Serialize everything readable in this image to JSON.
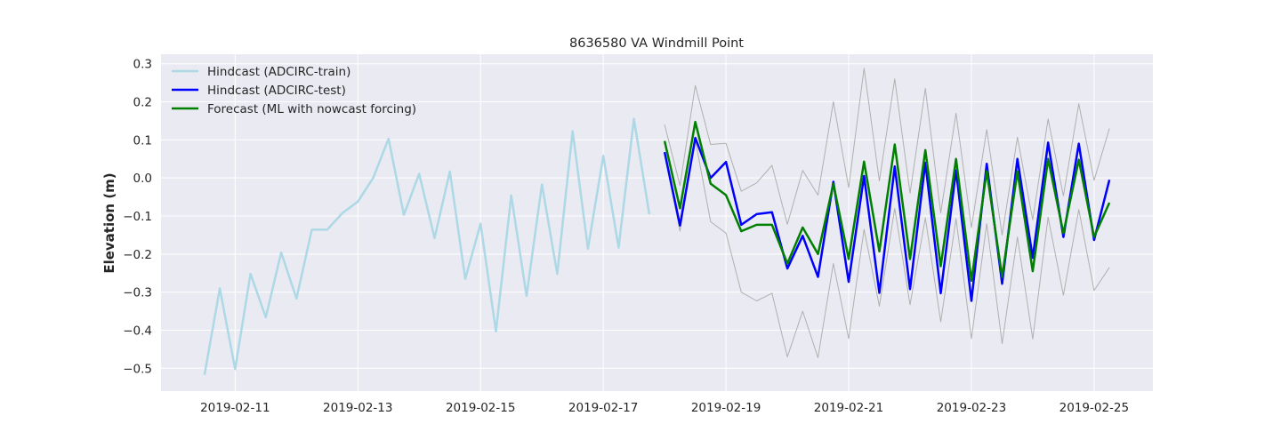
{
  "chart_data": {
    "type": "line",
    "title": "8636580 VA Windmill Point",
    "xlabel": "",
    "ylabel": "Elevation (m)",
    "x_type": "date",
    "xlim": [
      "2019-02-09T19:00",
      "2019-02-25T23:00"
    ],
    "ylim": [
      -0.56,
      0.325
    ],
    "grid": true,
    "legend_position": "top-left",
    "x_ticks": [
      "2019-02-11",
      "2019-02-13",
      "2019-02-15",
      "2019-02-17",
      "2019-02-19",
      "2019-02-21",
      "2019-02-23",
      "2019-02-25"
    ],
    "y_ticks": [
      -0.5,
      -0.4,
      -0.3,
      -0.2,
      -0.1,
      0.0,
      0.1,
      0.2,
      0.3
    ],
    "y_tick_labels": [
      "−0.5",
      "−0.4",
      "−0.3",
      "−0.2",
      "−0.1",
      "0.0",
      "0.1",
      "0.2",
      "0.3"
    ],
    "series": [
      {
        "name": "Hindcast (ADCIRC-train)",
        "color": "#add8e6",
        "width": 2.5,
        "legend": true,
        "x": [
          "2019-02-10T12:00",
          "2019-02-10T18:00",
          "2019-02-11T00:00",
          "2019-02-11T06:00",
          "2019-02-11T12:00",
          "2019-02-11T18:00",
          "2019-02-12T00:00",
          "2019-02-12T06:00",
          "2019-02-12T12:00",
          "2019-02-12T18:00",
          "2019-02-13T00:00",
          "2019-02-13T06:00",
          "2019-02-13T12:00",
          "2019-02-13T18:00",
          "2019-02-14T00:00",
          "2019-02-14T06:00",
          "2019-02-14T12:00",
          "2019-02-14T18:00",
          "2019-02-15T00:00",
          "2019-02-15T06:00",
          "2019-02-15T12:00",
          "2019-02-15T18:00",
          "2019-02-16T00:00",
          "2019-02-16T06:00",
          "2019-02-16T12:00",
          "2019-02-16T18:00",
          "2019-02-17T00:00",
          "2019-02-17T06:00",
          "2019-02-17T12:00",
          "2019-02-17T18:00"
        ],
        "values": [
          -0.517,
          -0.29,
          -0.502,
          -0.252,
          -0.366,
          -0.196,
          -0.317,
          -0.136,
          -0.136,
          -0.092,
          -0.062,
          0.0,
          0.103,
          -0.097,
          0.011,
          -0.158,
          0.017,
          -0.265,
          -0.12,
          -0.403,
          -0.046,
          -0.31,
          -0.017,
          -0.252,
          0.123,
          -0.186,
          0.058,
          -0.183,
          0.155,
          -0.095
        ]
      },
      {
        "name": "",
        "color": "#b0b0b0",
        "width": 1,
        "legend": false,
        "x": [
          "2019-02-18T00:00",
          "2019-02-18T06:00",
          "2019-02-18T12:00",
          "2019-02-18T18:00",
          "2019-02-19T00:00",
          "2019-02-19T06:00",
          "2019-02-19T12:00",
          "2019-02-19T18:00",
          "2019-02-20T00:00",
          "2019-02-20T06:00",
          "2019-02-20T12:00",
          "2019-02-20T18:00",
          "2019-02-21T00:00",
          "2019-02-21T06:00",
          "2019-02-21T12:00",
          "2019-02-21T18:00",
          "2019-02-22T00:00",
          "2019-02-22T06:00",
          "2019-02-22T12:00",
          "2019-02-22T18:00",
          "2019-02-23T00:00",
          "2019-02-23T06:00",
          "2019-02-23T12:00",
          "2019-02-23T18:00",
          "2019-02-24T00:00",
          "2019-02-24T06:00",
          "2019-02-24T12:00",
          "2019-02-24T18:00",
          "2019-02-25T00:00",
          "2019-02-25T06:00"
        ],
        "values": [
          0.14,
          -0.02,
          0.243,
          0.088,
          0.091,
          -0.035,
          -0.013,
          0.033,
          -0.122,
          0.02,
          -0.045,
          0.2,
          -0.025,
          0.288,
          -0.008,
          0.26,
          -0.04,
          0.235,
          -0.092,
          0.17,
          -0.13,
          0.127,
          -0.15,
          0.107,
          -0.11,
          0.155,
          -0.047,
          0.195,
          -0.006,
          0.13
        ]
      },
      {
        "name": "",
        "color": "#b0b0b0",
        "width": 1,
        "legend": false,
        "x": [
          "2019-02-18T00:00",
          "2019-02-18T06:00",
          "2019-02-18T12:00",
          "2019-02-18T18:00",
          "2019-02-19T00:00",
          "2019-02-19T06:00",
          "2019-02-19T12:00",
          "2019-02-19T18:00",
          "2019-02-20T00:00",
          "2019-02-20T06:00",
          "2019-02-20T12:00",
          "2019-02-20T18:00",
          "2019-02-21T00:00",
          "2019-02-21T06:00",
          "2019-02-21T12:00",
          "2019-02-21T18:00",
          "2019-02-22T00:00",
          "2019-02-22T06:00",
          "2019-02-22T12:00",
          "2019-02-22T18:00",
          "2019-02-23T00:00",
          "2019-02-23T06:00",
          "2019-02-23T12:00",
          "2019-02-23T18:00",
          "2019-02-24T00:00",
          "2019-02-24T06:00",
          "2019-02-24T12:00",
          "2019-02-24T18:00",
          "2019-02-25T00:00",
          "2019-02-25T06:00"
        ],
        "values": [
          0.06,
          -0.14,
          0.1,
          -0.115,
          -0.145,
          -0.3,
          -0.323,
          -0.303,
          -0.47,
          -0.35,
          -0.472,
          -0.225,
          -0.422,
          -0.135,
          -0.337,
          -0.08,
          -0.333,
          -0.105,
          -0.378,
          -0.107,
          -0.422,
          -0.12,
          -0.435,
          -0.155,
          -0.423,
          -0.103,
          -0.308,
          -0.083,
          -0.296,
          -0.235
        ]
      },
      {
        "name": "Hindcast (ADCIRC-test)",
        "color": "#0000ff",
        "width": 2.5,
        "legend": true,
        "x": [
          "2019-02-18T00:00",
          "2019-02-18T06:00",
          "2019-02-18T12:00",
          "2019-02-18T18:00",
          "2019-02-19T00:00",
          "2019-02-19T06:00",
          "2019-02-19T12:00",
          "2019-02-19T18:00",
          "2019-02-20T00:00",
          "2019-02-20T06:00",
          "2019-02-20T12:00",
          "2019-02-20T18:00",
          "2019-02-21T00:00",
          "2019-02-21T06:00",
          "2019-02-21T12:00",
          "2019-02-21T18:00",
          "2019-02-22T00:00",
          "2019-02-22T06:00",
          "2019-02-22T12:00",
          "2019-02-22T18:00",
          "2019-02-23T00:00",
          "2019-02-23T06:00",
          "2019-02-23T12:00",
          "2019-02-23T18:00",
          "2019-02-24T00:00",
          "2019-02-24T06:00",
          "2019-02-24T12:00",
          "2019-02-24T18:00",
          "2019-02-25T00:00",
          "2019-02-25T06:00"
        ],
        "values": [
          0.068,
          -0.125,
          0.105,
          0.0,
          0.042,
          -0.123,
          -0.095,
          -0.09,
          -0.238,
          -0.152,
          -0.26,
          -0.01,
          -0.273,
          0.005,
          -0.302,
          0.03,
          -0.292,
          0.04,
          -0.303,
          0.02,
          -0.323,
          0.037,
          -0.278,
          0.05,
          -0.21,
          0.093,
          -0.155,
          0.09,
          -0.163,
          -0.005
        ]
      },
      {
        "name": "Forecast (ML with nowcast forcing)",
        "color": "#008000",
        "width": 2.5,
        "legend": true,
        "x": [
          "2019-02-18T00:00",
          "2019-02-18T06:00",
          "2019-02-18T12:00",
          "2019-02-18T18:00",
          "2019-02-19T00:00",
          "2019-02-19T06:00",
          "2019-02-19T12:00",
          "2019-02-19T18:00",
          "2019-02-20T00:00",
          "2019-02-20T06:00",
          "2019-02-20T12:00",
          "2019-02-20T18:00",
          "2019-02-21T00:00",
          "2019-02-21T06:00",
          "2019-02-21T12:00",
          "2019-02-21T18:00",
          "2019-02-22T00:00",
          "2019-02-22T06:00",
          "2019-02-22T12:00",
          "2019-02-22T18:00",
          "2019-02-23T00:00",
          "2019-02-23T06:00",
          "2019-02-23T12:00",
          "2019-02-23T18:00",
          "2019-02-24T00:00",
          "2019-02-24T06:00",
          "2019-02-24T12:00",
          "2019-02-24T18:00",
          "2019-02-25T00:00",
          "2019-02-25T06:00"
        ],
        "values": [
          0.097,
          -0.08,
          0.147,
          -0.015,
          -0.045,
          -0.14,
          -0.123,
          -0.123,
          -0.225,
          -0.13,
          -0.2,
          -0.015,
          -0.213,
          0.043,
          -0.193,
          0.088,
          -0.213,
          0.073,
          -0.232,
          0.05,
          -0.27,
          0.018,
          -0.26,
          0.017,
          -0.245,
          0.05,
          -0.145,
          0.048,
          -0.155,
          -0.065
        ]
      }
    ]
  }
}
